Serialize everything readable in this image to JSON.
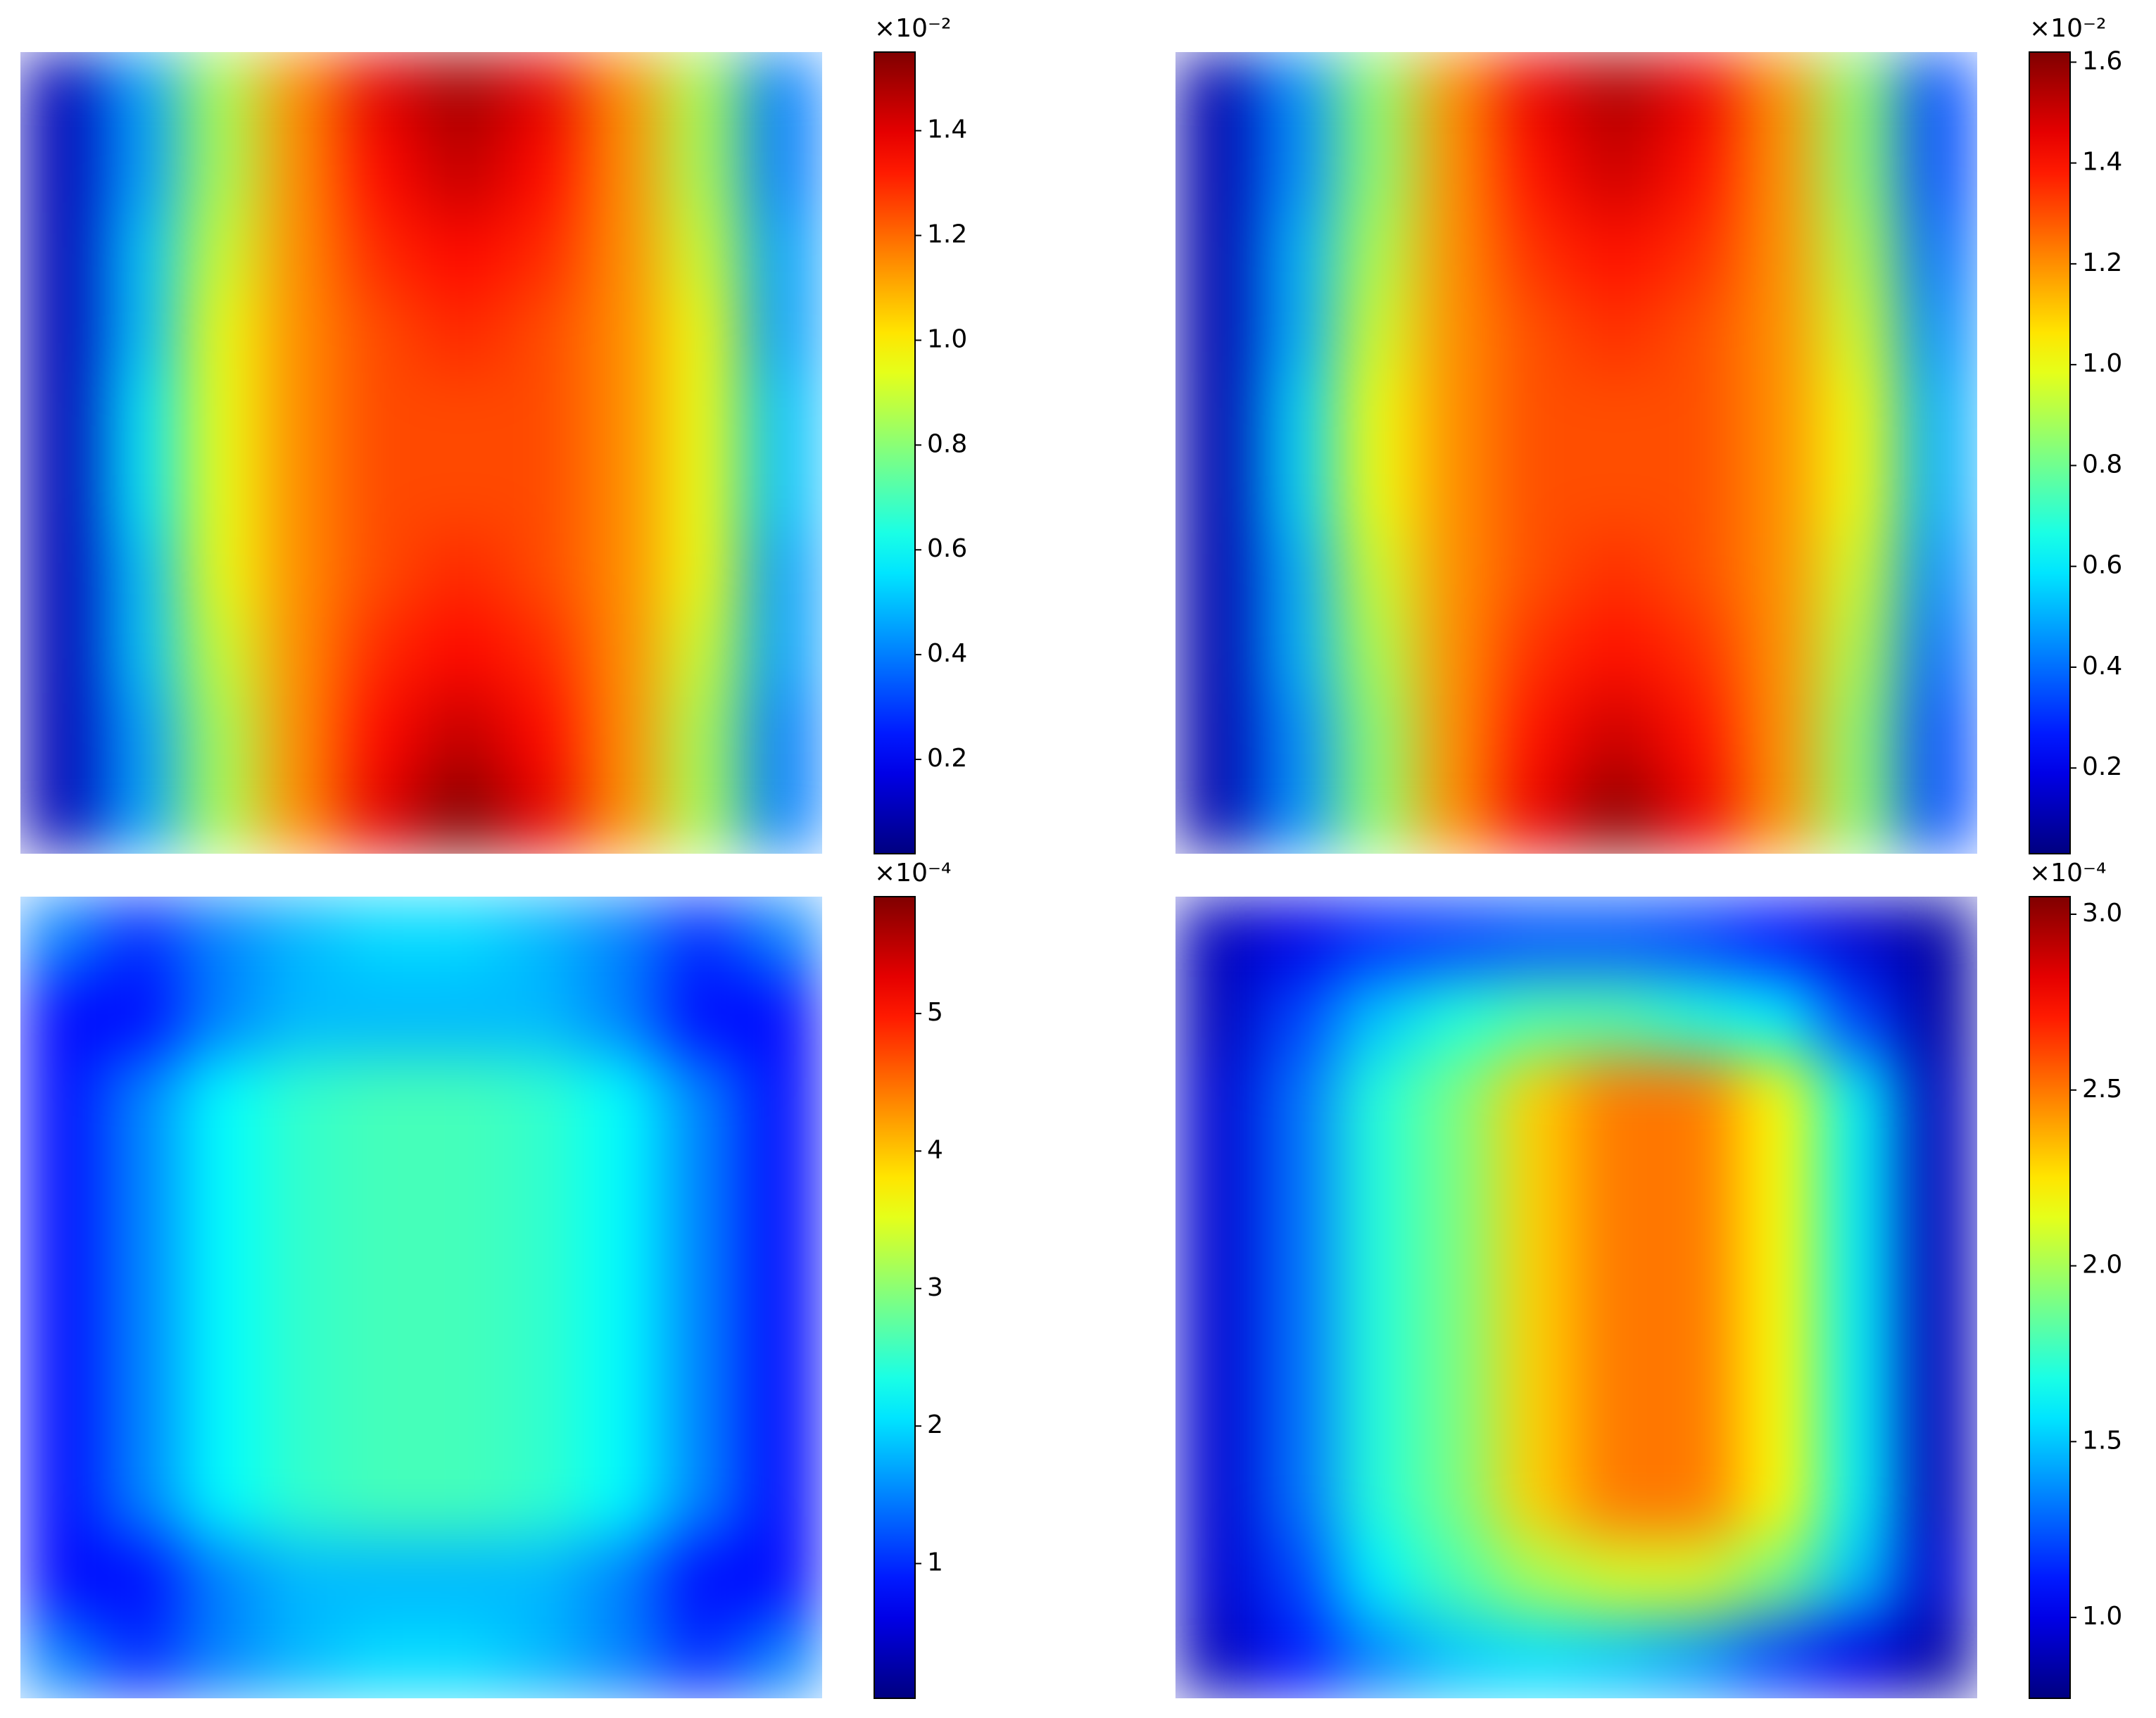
{
  "chart_data": [
    {
      "type": "heatmap",
      "colormap": "jet",
      "colorbar_offset_label": "×10⁻²",
      "clim": [
        0.02,
        1.55
      ],
      "cticks": [
        0.2,
        0.4,
        0.6,
        0.8,
        {
          "value": 1,
          "label": "1.0"
        },
        1.2,
        1.4
      ],
      "z": [
        [
          0.1,
          0.45,
          0.85,
          1.15,
          1.4,
          1.5,
          1.4,
          1.15,
          0.85,
          0.4
        ],
        [
          0.1,
          0.45,
          0.85,
          1.15,
          1.35,
          1.45,
          1.35,
          1.15,
          0.85,
          0.4
        ],
        [
          0.1,
          0.5,
          0.9,
          1.15,
          1.3,
          1.35,
          1.3,
          1.15,
          0.9,
          0.45
        ],
        [
          0.1,
          0.5,
          0.95,
          1.15,
          1.25,
          1.3,
          1.25,
          1.15,
          0.95,
          0.45
        ],
        [
          0.1,
          0.55,
          0.95,
          1.15,
          1.25,
          1.25,
          1.25,
          1.15,
          0.95,
          0.5
        ],
        [
          0.1,
          0.55,
          0.95,
          1.15,
          1.25,
          1.25,
          1.25,
          1.15,
          0.95,
          0.5
        ],
        [
          0.1,
          0.5,
          0.95,
          1.15,
          1.25,
          1.3,
          1.25,
          1.15,
          0.95,
          0.45
        ],
        [
          0.1,
          0.5,
          0.9,
          1.15,
          1.3,
          1.35,
          1.3,
          1.15,
          0.9,
          0.45
        ],
        [
          0.1,
          0.45,
          0.85,
          1.15,
          1.35,
          1.45,
          1.35,
          1.15,
          0.85,
          0.4
        ],
        [
          0.1,
          0.45,
          0.85,
          1.15,
          1.4,
          1.55,
          1.4,
          1.15,
          0.85,
          0.4
        ]
      ]
    },
    {
      "type": "heatmap",
      "colormap": "jet",
      "colorbar_offset_label": "×10⁻²",
      "clim": [
        0.03,
        1.62
      ],
      "cticks": [
        0.2,
        0.4,
        0.6,
        0.8,
        {
          "value": 1,
          "label": "1.0"
        },
        1.2,
        1.4,
        1.6
      ],
      "z": [
        [
          0.1,
          0.45,
          0.85,
          1.2,
          1.45,
          1.55,
          1.45,
          1.2,
          0.85,
          0.35
        ],
        [
          0.1,
          0.45,
          0.85,
          1.2,
          1.4,
          1.5,
          1.4,
          1.2,
          0.85,
          0.35
        ],
        [
          0.1,
          0.5,
          0.9,
          1.2,
          1.35,
          1.4,
          1.35,
          1.2,
          0.9,
          0.4
        ],
        [
          0.1,
          0.5,
          0.95,
          1.2,
          1.3,
          1.35,
          1.3,
          1.2,
          0.95,
          0.45
        ],
        [
          0.1,
          0.55,
          1.0,
          1.2,
          1.3,
          1.3,
          1.3,
          1.2,
          1.0,
          0.5
        ],
        [
          0.1,
          0.55,
          1.0,
          1.2,
          1.3,
          1.3,
          1.3,
          1.2,
          1.0,
          0.5
        ],
        [
          0.1,
          0.5,
          0.95,
          1.2,
          1.3,
          1.35,
          1.3,
          1.2,
          0.95,
          0.45
        ],
        [
          0.1,
          0.5,
          0.9,
          1.2,
          1.35,
          1.4,
          1.35,
          1.2,
          0.9,
          0.4
        ],
        [
          0.1,
          0.45,
          0.85,
          1.2,
          1.4,
          1.5,
          1.4,
          1.2,
          0.85,
          0.35
        ],
        [
          0.1,
          0.45,
          0.85,
          1.2,
          1.45,
          1.6,
          1.45,
          1.2,
          0.85,
          0.35
        ]
      ]
    },
    {
      "type": "heatmap",
      "colormap": "jet",
      "colorbar_offset_label": "×10⁻⁴",
      "clim": [
        0.02,
        5.85
      ],
      "cticks": [
        1,
        2,
        3,
        4,
        5
      ],
      "z": [
        [
          1.5,
          1.0,
          1.5,
          1.8,
          2.0,
          2.0,
          1.8,
          1.5,
          1.0,
          1.5
        ],
        [
          0.8,
          0.8,
          1.5,
          1.8,
          1.8,
          1.8,
          1.8,
          1.5,
          0.8,
          0.8
        ],
        [
          0.8,
          1.5,
          2.2,
          2.5,
          2.6,
          2.6,
          2.5,
          2.2,
          1.5,
          0.8
        ],
        [
          0.8,
          1.5,
          2.2,
          2.5,
          2.6,
          2.6,
          2.5,
          2.2,
          1.5,
          0.8
        ],
        [
          0.8,
          1.5,
          2.2,
          2.5,
          2.6,
          2.6,
          2.5,
          2.2,
          1.5,
          0.8
        ],
        [
          0.8,
          1.5,
          2.2,
          2.5,
          2.6,
          2.6,
          2.5,
          2.2,
          1.5,
          0.8
        ],
        [
          0.8,
          1.5,
          2.2,
          2.5,
          2.6,
          2.6,
          2.5,
          2.2,
          1.5,
          0.8
        ],
        [
          0.8,
          1.5,
          2.2,
          2.5,
          2.6,
          2.6,
          2.5,
          2.2,
          1.5,
          0.8
        ],
        [
          0.8,
          0.8,
          1.5,
          1.8,
          1.8,
          1.8,
          1.8,
          1.5,
          0.8,
          0.8
        ],
        [
          1.5,
          1.0,
          1.5,
          1.8,
          2.0,
          2.0,
          1.8,
          1.5,
          1.0,
          1.5
        ]
      ]
    },
    {
      "type": "heatmap",
      "colormap": "jet",
      "colorbar_offset_label": "×10⁻⁴",
      "clim": [
        0.77,
        3.05
      ],
      "cticks": [
        {
          "value": 1,
          "label": "1.0"
        },
        1.5,
        {
          "value": 2,
          "label": "2.0"
        },
        2.5,
        {
          "value": 3,
          "label": "3.0"
        }
      ],
      "z": [
        [
          0.9,
          1.0,
          1.15,
          1.2,
          1.25,
          1.25,
          1.2,
          1.1,
          0.95,
          0.85
        ],
        [
          0.9,
          1.2,
          1.5,
          1.7,
          1.8,
          1.8,
          1.7,
          1.6,
          1.2,
          0.85
        ],
        [
          0.95,
          1.3,
          1.7,
          1.9,
          2.3,
          2.5,
          2.5,
          2.2,
          1.6,
          0.9
        ],
        [
          0.95,
          1.3,
          1.7,
          1.9,
          2.3,
          2.5,
          2.5,
          2.2,
          1.6,
          0.9
        ],
        [
          0.95,
          1.3,
          1.7,
          1.9,
          2.3,
          2.5,
          2.5,
          2.2,
          1.6,
          0.9
        ],
        [
          0.95,
          1.3,
          1.7,
          1.9,
          2.3,
          2.5,
          2.5,
          2.2,
          1.6,
          0.9
        ],
        [
          0.95,
          1.3,
          1.7,
          1.9,
          2.3,
          2.5,
          2.5,
          2.2,
          1.6,
          0.9
        ],
        [
          0.95,
          1.3,
          1.7,
          1.9,
          2.3,
          2.5,
          2.5,
          2.2,
          1.6,
          0.9
        ],
        [
          0.95,
          1.2,
          1.6,
          1.8,
          2.0,
          2.1,
          2.1,
          1.9,
          1.5,
          0.95
        ],
        [
          0.9,
          1.1,
          1.35,
          1.5,
          1.55,
          1.5,
          1.4,
          1.2,
          1.0,
          0.85
        ]
      ]
    }
  ]
}
